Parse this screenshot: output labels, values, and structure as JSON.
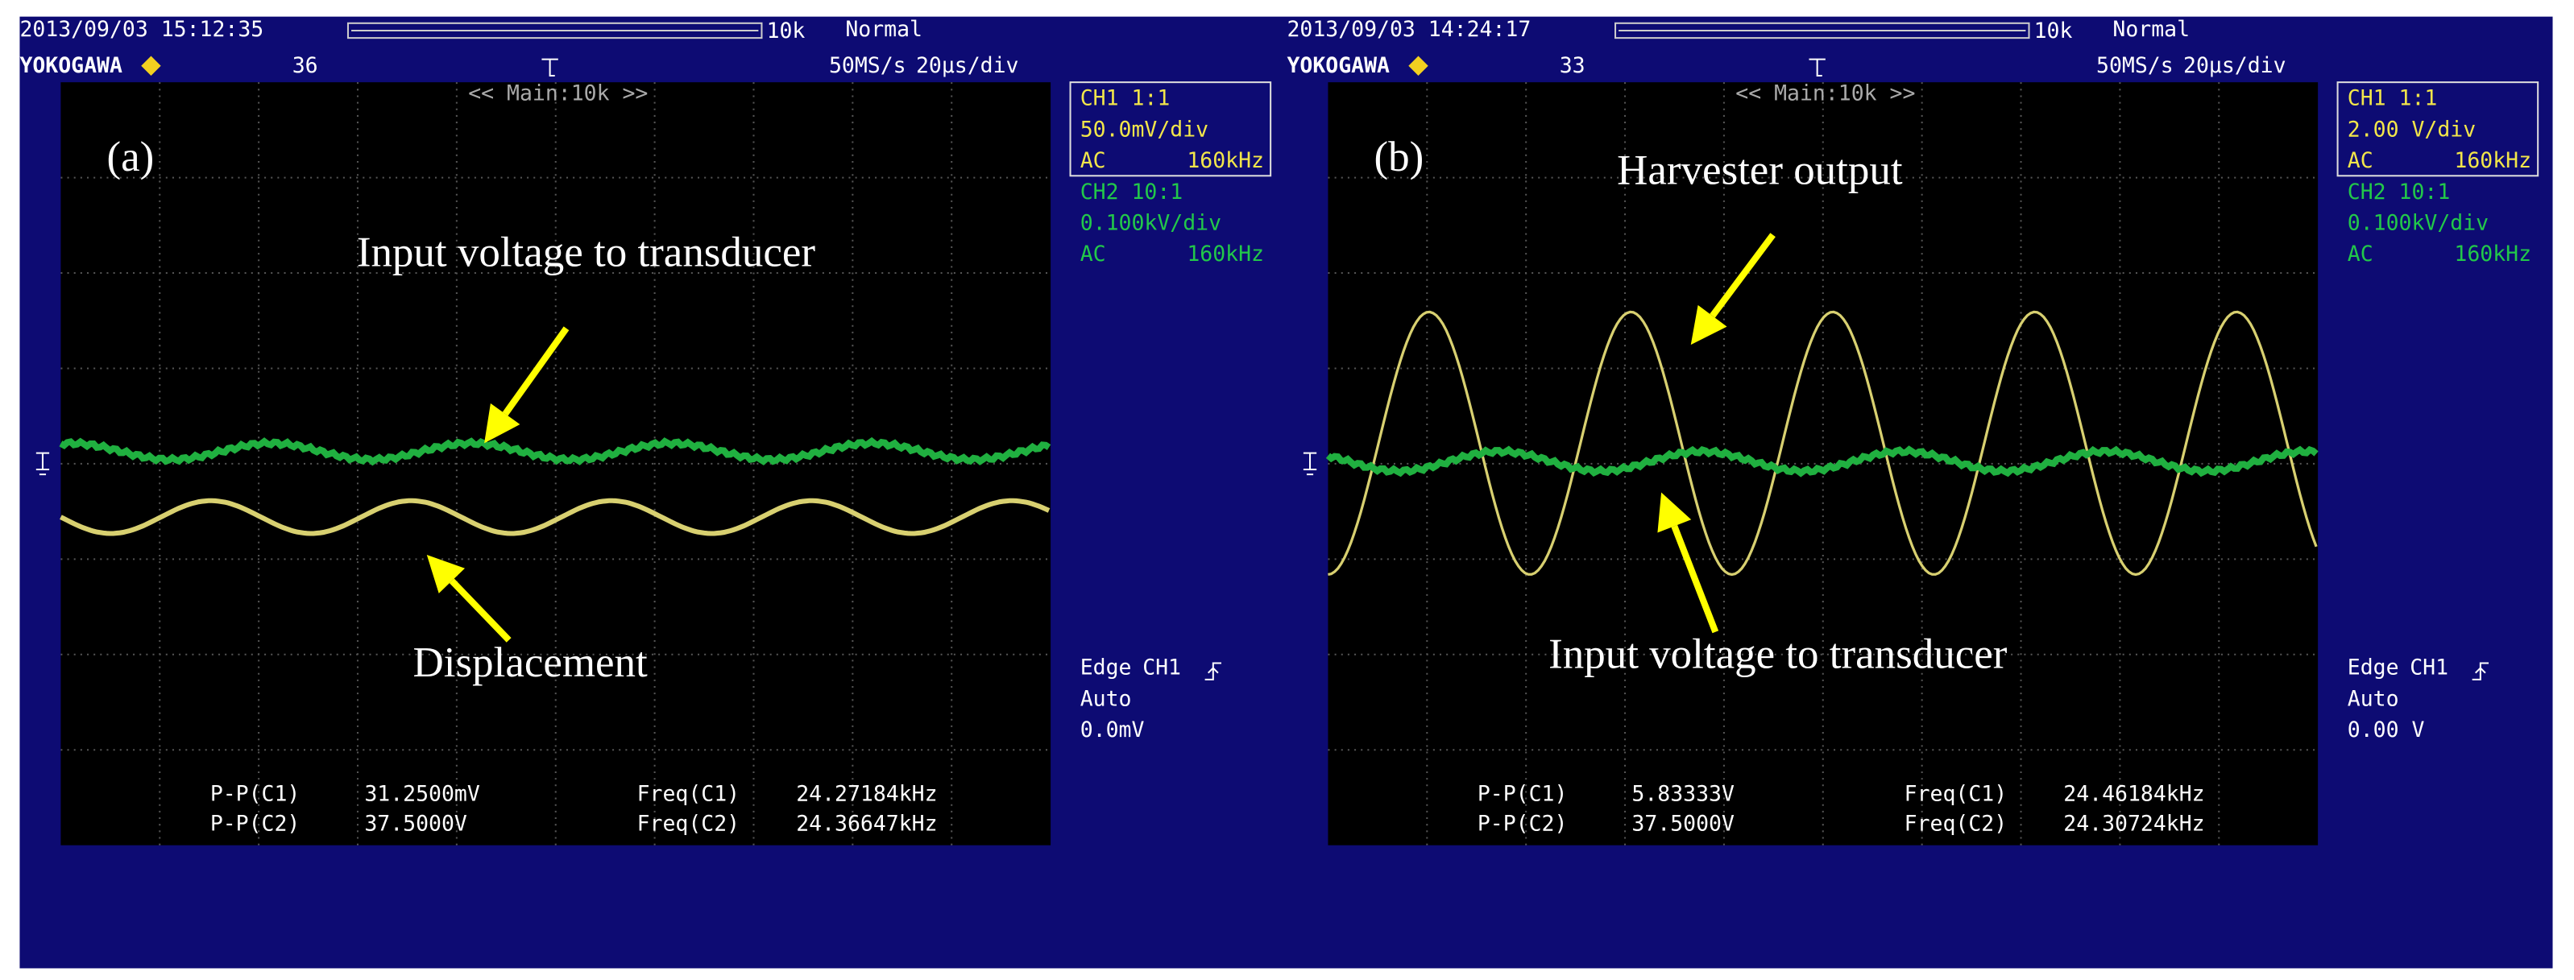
{
  "scopes": [
    {
      "timestamp": "2013/09/03 15:12:35",
      "brand": "YOKOGAWA",
      "count": "36",
      "zoom": "10k",
      "mode": "Normal",
      "sample_rate": "50MS/s",
      "timebase": "20µs/div",
      "main": "<< Main:10k >>",
      "ch1": [
        "CH1 1:1",
        "50.0mV/div",
        "AC",
        "160kHz"
      ],
      "ch2": [
        "CH2 10:1",
        "0.100kV/div",
        "AC",
        "160kHz"
      ],
      "trigger": {
        "type": "Edge",
        "source": "CH1",
        "mode": "Auto",
        "level": "0.0mV"
      },
      "measurements": [
        [
          "P-P(C1)",
          "31.2500mV"
        ],
        [
          "P-P(C2)",
          "37.5000V"
        ],
        [
          "Freq(C1)",
          "24.27184kHz"
        ],
        [
          "Freq(C2)",
          "24.36647kHz"
        ]
      ],
      "panel": "(a)",
      "labels": [
        "Input voltage to transducer",
        "Displacement"
      ]
    },
    {
      "timestamp": "2013/09/03 14:24:17",
      "brand": "YOKOGAWA",
      "count": "33",
      "zoom": "10k",
      "mode": "Normal",
      "sample_rate": "50MS/s",
      "timebase": "20µs/div",
      "main": "<< Main:10k >>",
      "ch1": [
        "CH1 1:1",
        "2.00 V/div",
        "AC",
        "160kHz"
      ],
      "ch2": [
        "CH2 10:1",
        "0.100kV/div",
        "AC",
        "160kHz"
      ],
      "trigger": {
        "type": "Edge",
        "source": "CH1",
        "mode": "Auto",
        "level": "0.00 V"
      },
      "measurements": [
        [
          "P-P(C1)",
          "5.83333V"
        ],
        [
          "P-P(C2)",
          "37.5000V"
        ],
        [
          "Freq(C1)",
          "24.46184kHz"
        ],
        [
          "Freq(C2)",
          "24.30724kHz"
        ]
      ],
      "panel": "(b)",
      "labels": [
        "Harvester output",
        "Input voltage to transducer"
      ]
    }
  ]
}
